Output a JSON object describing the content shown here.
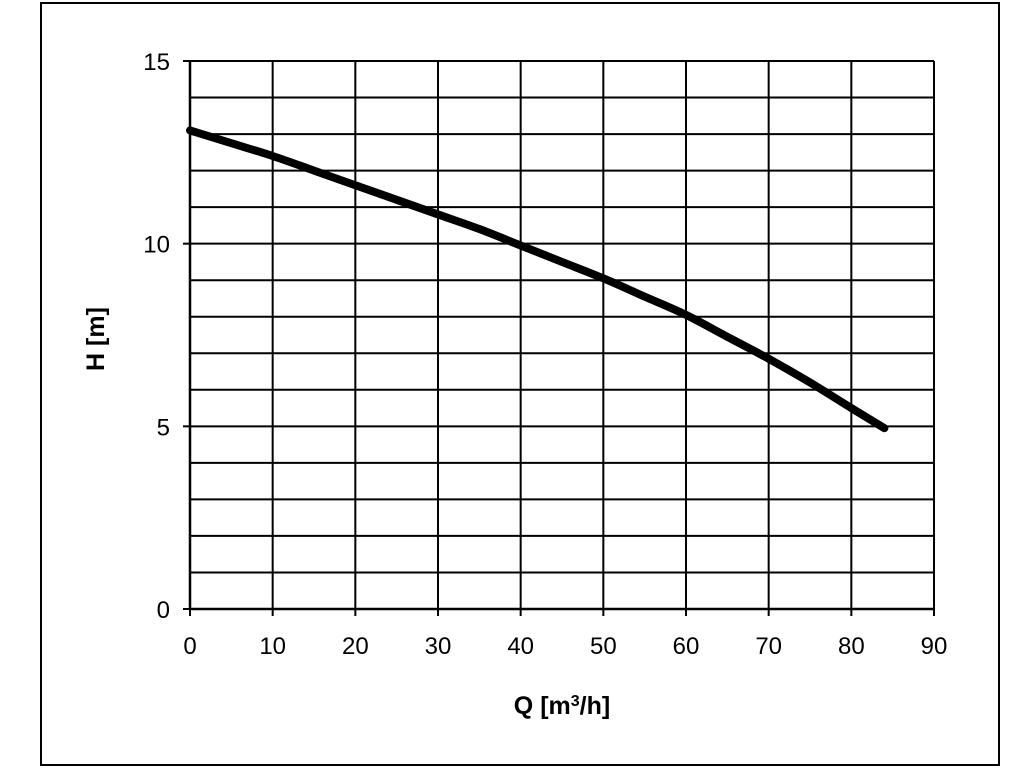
{
  "chart_data": {
    "type": "line",
    "title": "",
    "xlabel": "Q [m",
    "xlabel_sup": "3",
    "xlabel_suffix": "/h]",
    "ylabel": "H [m]",
    "xlim": [
      0,
      90
    ],
    "ylim": [
      0,
      15
    ],
    "x_major_ticks": [
      0,
      10,
      20,
      30,
      40,
      50,
      60,
      70,
      80,
      90
    ],
    "y_major_ticks": [
      0,
      5,
      10,
      15
    ],
    "x_grid_step": 10,
    "y_grid_step": 1,
    "grid": true,
    "legend": "none",
    "series": [
      {
        "color": "#000000",
        "x": [
          0,
          5,
          10,
          15,
          20,
          25,
          30,
          35,
          40,
          45,
          50,
          55,
          60,
          65,
          70,
          75,
          80,
          84
        ],
        "y": [
          13.1,
          12.75,
          12.4,
          12.0,
          11.6,
          11.2,
          10.8,
          10.4,
          9.95,
          9.5,
          9.05,
          8.55,
          8.05,
          7.45,
          6.85,
          6.2,
          5.5,
          4.95
        ]
      }
    ]
  }
}
